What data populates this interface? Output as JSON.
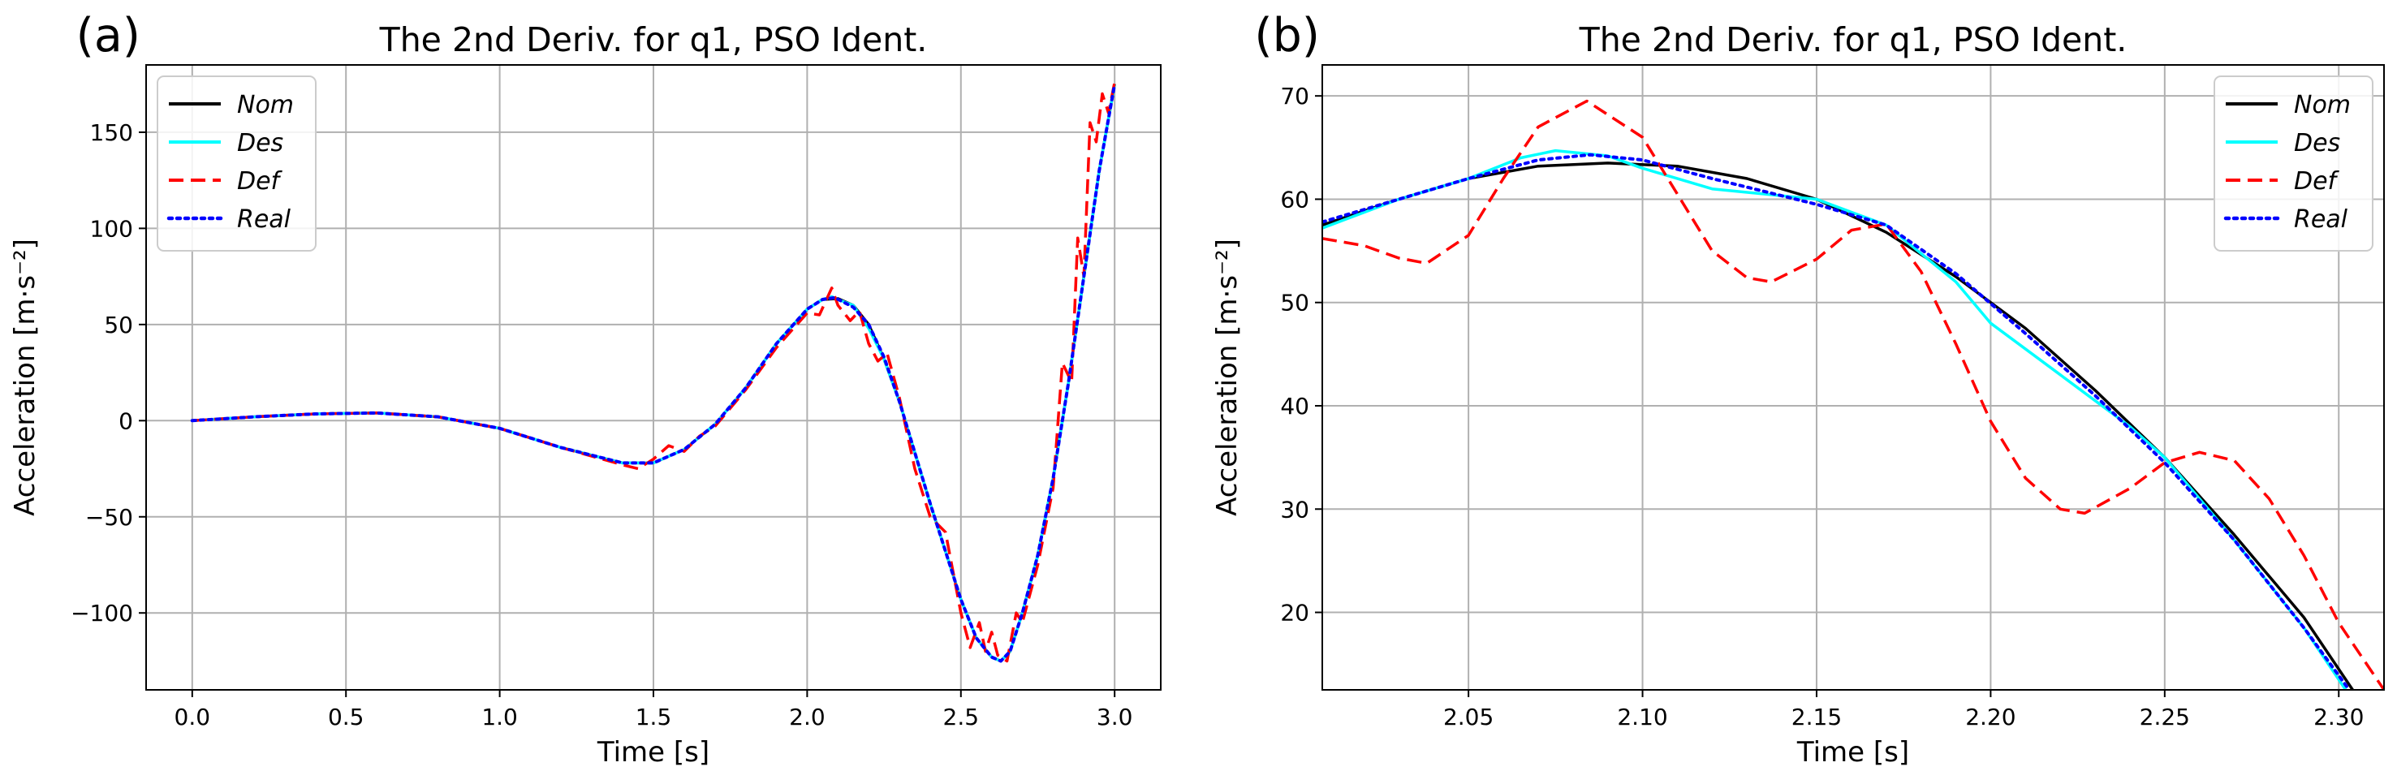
{
  "chart_data": [
    {
      "panel_label": "(a)",
      "type": "line",
      "title": "The 2nd Deriv. for q1, PSO Ident.",
      "xlabel": "Time [s]",
      "ylabel": "Acceleration [m·s⁻²]",
      "xlim": [
        -0.15,
        3.15
      ],
      "ylim": [
        -140,
        185
      ],
      "grid": true,
      "legend_position": "top-left",
      "xticks": [
        0.0,
        0.5,
        1.0,
        1.5,
        2.0,
        2.5,
        3.0
      ],
      "xtick_labels": [
        "0.0",
        "0.5",
        "1.0",
        "1.5",
        "2.0",
        "2.5",
        "3.0"
      ],
      "yticks": [
        -100,
        -50,
        0,
        50,
        100,
        150
      ],
      "ytick_labels": [
        "−100",
        "−50",
        "0",
        "50",
        "100",
        "150"
      ],
      "series": [
        {
          "name": "Nom",
          "color": "#000000",
          "style": "solid",
          "x": [
            0,
            0.2,
            0.4,
            0.6,
            0.8,
            1.0,
            1.2,
            1.4,
            1.5,
            1.6,
            1.7,
            1.8,
            1.9,
            2.0,
            2.05,
            2.1,
            2.15,
            2.2,
            2.25,
            2.3,
            2.4,
            2.5,
            2.55,
            2.6,
            2.63,
            2.66,
            2.7,
            2.75,
            2.8,
            2.85,
            2.9,
            2.95,
            3.0
          ],
          "y": [
            0,
            2,
            3.5,
            4,
            2,
            -4,
            -14,
            -22,
            -22,
            -15,
            -2,
            17,
            40,
            58,
            63,
            63.5,
            60,
            50,
            32,
            10,
            -43,
            -93,
            -113,
            -123,
            -125,
            -120,
            -100,
            -70,
            -30,
            20,
            75,
            130,
            175
          ]
        },
        {
          "name": "Des",
          "color": "#00ffff",
          "style": "solid",
          "x": [
            0,
            0.2,
            0.4,
            0.6,
            0.8,
            1.0,
            1.2,
            1.4,
            1.5,
            1.6,
            1.7,
            1.8,
            1.9,
            2.0,
            2.05,
            2.08,
            2.1,
            2.15,
            2.2,
            2.25,
            2.3,
            2.4,
            2.5,
            2.55,
            2.6,
            2.63,
            2.66,
            2.7,
            2.75,
            2.8,
            2.85,
            2.9,
            2.95,
            3.0
          ],
          "y": [
            0,
            2,
            3.5,
            4,
            2,
            -4,
            -14,
            -22,
            -22,
            -15,
            -2,
            17,
            40,
            58,
            63,
            64.5,
            63,
            60,
            48,
            32,
            10,
            -43,
            -93,
            -113,
            -123,
            -125,
            -120,
            -100,
            -70,
            -30,
            20,
            75,
            130,
            175
          ]
        },
        {
          "name": "Def",
          "color": "#ff0000",
          "style": "dashed",
          "x": [
            0,
            0.2,
            0.4,
            0.6,
            0.8,
            1.0,
            1.2,
            1.4,
            1.45,
            1.5,
            1.55,
            1.6,
            1.65,
            1.7,
            1.8,
            1.9,
            2.0,
            2.04,
            2.08,
            2.1,
            2.14,
            2.17,
            2.2,
            2.23,
            2.26,
            2.3,
            2.35,
            2.4,
            2.45,
            2.5,
            2.53,
            2.56,
            2.58,
            2.6,
            2.62,
            2.65,
            2.68,
            2.7,
            2.75,
            2.8,
            2.83,
            2.86,
            2.88,
            2.9,
            2.92,
            2.94,
            2.96,
            2.98,
            3.0
          ],
          "y": [
            0,
            2,
            3.5,
            4,
            2,
            -4,
            -14,
            -23,
            -25,
            -20,
            -13,
            -16,
            -8,
            -3,
            16,
            38,
            56,
            55,
            69,
            60,
            52,
            57,
            40,
            31,
            35,
            12,
            -25,
            -50,
            -58,
            -100,
            -118,
            -105,
            -120,
            -110,
            -122,
            -125,
            -100,
            -105,
            -75,
            -35,
            30,
            20,
            95,
            75,
            155,
            145,
            170,
            160,
            176
          ]
        },
        {
          "name": "Real",
          "color": "#0000ff",
          "style": "dotted",
          "x": [
            0,
            0.2,
            0.4,
            0.6,
            0.8,
            1.0,
            1.2,
            1.4,
            1.5,
            1.6,
            1.7,
            1.8,
            1.9,
            2.0,
            2.05,
            2.09,
            2.15,
            2.2,
            2.25,
            2.3,
            2.4,
            2.5,
            2.55,
            2.6,
            2.63,
            2.66,
            2.7,
            2.75,
            2.8,
            2.85,
            2.9,
            2.95,
            3.0
          ],
          "y": [
            0,
            2,
            3.5,
            4,
            2,
            -4,
            -14,
            -22,
            -22,
            -15,
            -2,
            17,
            40,
            58,
            63,
            64,
            59,
            50,
            33,
            10,
            -43,
            -93,
            -113,
            -123,
            -125,
            -120,
            -100,
            -70,
            -30,
            20,
            75,
            130,
            175
          ]
        }
      ]
    },
    {
      "panel_label": "(b)",
      "type": "line",
      "title": "The 2nd Deriv. for q1, PSO Ident.",
      "xlabel": "Time [s]",
      "ylabel": "Acceleration [m·s⁻²]",
      "xlim": [
        2.008,
        2.313
      ],
      "ylim": [
        12.5,
        73
      ],
      "grid": true,
      "legend_position": "top-right",
      "xticks": [
        2.05,
        2.1,
        2.15,
        2.2,
        2.25,
        2.3
      ],
      "xtick_labels": [
        "2.05",
        "2.10",
        "2.15",
        "2.20",
        "2.25",
        "2.30"
      ],
      "yticks": [
        20,
        30,
        40,
        50,
        60,
        70
      ],
      "ytick_labels": [
        "20",
        "30",
        "40",
        "50",
        "60",
        "70"
      ],
      "series": [
        {
          "name": "Nom",
          "color": "#000000",
          "style": "solid",
          "x": [
            2.008,
            2.03,
            2.05,
            2.07,
            2.09,
            2.11,
            2.13,
            2.15,
            2.17,
            2.19,
            2.21,
            2.23,
            2.25,
            2.27,
            2.29,
            2.304
          ],
          "y": [
            57.5,
            60,
            62,
            63.2,
            63.5,
            63.2,
            62,
            60,
            56.8,
            52.5,
            47.5,
            41.5,
            35,
            27.5,
            19.5,
            12.5
          ]
        },
        {
          "name": "Des",
          "color": "#00ffff",
          "style": "solid",
          "x": [
            2.008,
            2.03,
            2.05,
            2.065,
            2.075,
            2.09,
            2.1,
            2.12,
            2.15,
            2.17,
            2.19,
            2.2,
            2.22,
            2.24,
            2.25,
            2.27,
            2.29,
            2.302
          ],
          "y": [
            57.2,
            60,
            62,
            64,
            64.7,
            64.2,
            63,
            61,
            60,
            57.5,
            52,
            48,
            43,
            38,
            35,
            27,
            18.5,
            12.5
          ]
        },
        {
          "name": "Def",
          "color": "#ff0000",
          "style": "dashed",
          "x": [
            2.008,
            2.02,
            2.03,
            2.038,
            2.05,
            2.06,
            2.07,
            2.084,
            2.1,
            2.11,
            2.12,
            2.13,
            2.137,
            2.15,
            2.16,
            2.17,
            2.18,
            2.19,
            2.2,
            2.21,
            2.22,
            2.227,
            2.24,
            2.25,
            2.26,
            2.27,
            2.28,
            2.29,
            2.3,
            2.313
          ],
          "y": [
            56.2,
            55.5,
            54.3,
            53.8,
            56.5,
            62,
            67,
            69.5,
            66,
            60.5,
            55,
            52.4,
            52,
            54.2,
            57,
            57.6,
            53,
            46,
            38.5,
            33,
            30,
            29.6,
            32,
            34.5,
            35.5,
            34.7,
            31,
            25.5,
            19,
            12.5
          ]
        },
        {
          "name": "Real",
          "color": "#0000ff",
          "style": "dotted",
          "x": [
            2.008,
            2.03,
            2.05,
            2.07,
            2.085,
            2.1,
            2.12,
            2.15,
            2.17,
            2.19,
            2.21,
            2.23,
            2.25,
            2.27,
            2.29,
            2.303
          ],
          "y": [
            57.8,
            60,
            62,
            63.8,
            64.3,
            63.8,
            62,
            59.5,
            57.5,
            52.8,
            47,
            41,
            34.5,
            27,
            18.5,
            12.5
          ]
        }
      ]
    }
  ]
}
